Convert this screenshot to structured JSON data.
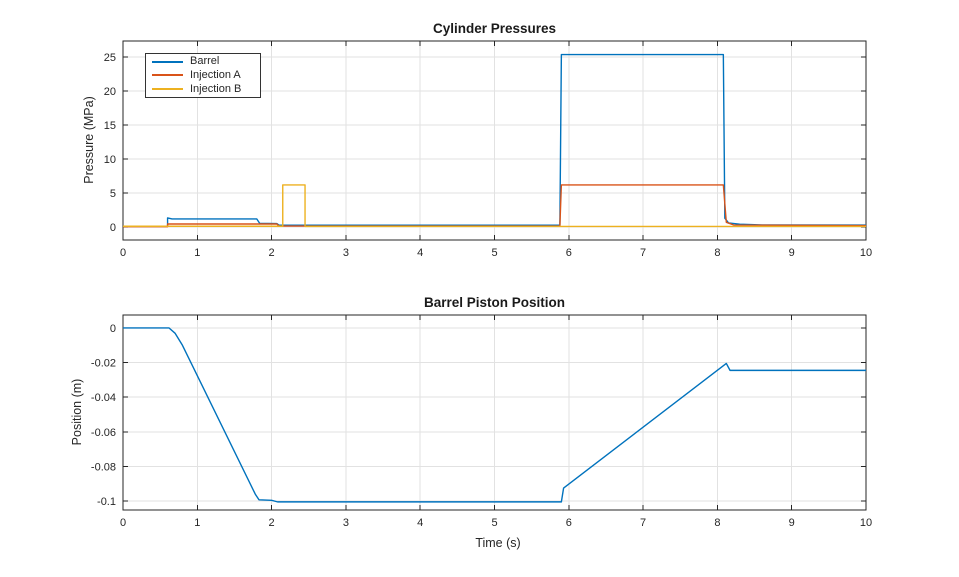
{
  "figure": {
    "background": "#ffffff",
    "axis_color": "#262626",
    "grid_color": "#e2e2e2",
    "tick_label_color": "#262626",
    "title_color": "#1a1a1a"
  },
  "chart_data": [
    {
      "type": "line",
      "title": "Cylinder Pressures",
      "xlabel": "",
      "ylabel": "Pressure (MPa)",
      "xlim": [
        0,
        10
      ],
      "ylim": [
        -1.9,
        27.35
      ],
      "xticks": [
        0,
        1,
        2,
        3,
        4,
        5,
        6,
        7,
        8,
        9,
        10
      ],
      "yticks": [
        0,
        5,
        10,
        15,
        20,
        25
      ],
      "grid": true,
      "legend": {
        "visible": true,
        "position": "northwest"
      },
      "series": [
        {
          "name": "Barrel",
          "color": "#0072BD",
          "points": [
            [
              0,
              0.1
            ],
            [
              0.6,
              0.1
            ],
            [
              0.6,
              1.35
            ],
            [
              0.66,
              1.2
            ],
            [
              1.8,
              1.2
            ],
            [
              1.84,
              0.55
            ],
            [
              2.07,
              0.52
            ],
            [
              2.1,
              0.27
            ],
            [
              5.88,
              0.27
            ],
            [
              5.9,
              25.35
            ],
            [
              8.08,
              25.35
            ],
            [
              8.1,
              1.3
            ],
            [
              8.15,
              0.6
            ],
            [
              8.3,
              0.42
            ],
            [
              8.6,
              0.32
            ],
            [
              10,
              0.3
            ]
          ]
        },
        {
          "name": "Injection A",
          "color": "#D95319",
          "points": [
            [
              0,
              0.05
            ],
            [
              0.6,
              0.05
            ],
            [
              0.6,
              0.45
            ],
            [
              2.07,
              0.45
            ],
            [
              2.1,
              0.15
            ],
            [
              5.88,
              0.15
            ],
            [
              5.9,
              6.2
            ],
            [
              8.08,
              6.2
            ],
            [
              8.12,
              0.7
            ],
            [
              8.22,
              0.3
            ],
            [
              10,
              0.22
            ]
          ]
        },
        {
          "name": "Injection B",
          "color": "#EDB120",
          "points": [
            [
              0,
              0.12
            ],
            [
              2.15,
              0.12
            ],
            [
              2.15,
              6.2
            ],
            [
              2.45,
              6.2
            ],
            [
              2.45,
              0.1
            ],
            [
              10,
              0.1
            ]
          ]
        }
      ]
    },
    {
      "type": "line",
      "title": "Barrel Piston Position",
      "xlabel": "Time (s)",
      "ylabel": "Position (m)",
      "xlim": [
        0,
        10
      ],
      "ylim": [
        -0.1052,
        0.0075
      ],
      "xticks": [
        0,
        1,
        2,
        3,
        4,
        5,
        6,
        7,
        8,
        9,
        10
      ],
      "yticks": [
        0,
        -0.02,
        -0.04,
        -0.06,
        -0.08,
        -0.1
      ],
      "grid": true,
      "legend": {
        "visible": false
      },
      "series": [
        {
          "name": "Barrel",
          "color": "#0072BD",
          "points": [
            [
              0,
              0
            ],
            [
              0.62,
              0
            ],
            [
              0.7,
              -0.003
            ],
            [
              0.8,
              -0.01
            ],
            [
              1.78,
              -0.096
            ],
            [
              1.83,
              -0.0993
            ],
            [
              2.0,
              -0.0996
            ],
            [
              2.08,
              -0.1005
            ],
            [
              5.9,
              -0.1005
            ],
            [
              5.93,
              -0.0925
            ],
            [
              8.12,
              -0.0205
            ],
            [
              8.17,
              -0.0245
            ],
            [
              10,
              -0.0245
            ]
          ]
        }
      ]
    }
  ]
}
